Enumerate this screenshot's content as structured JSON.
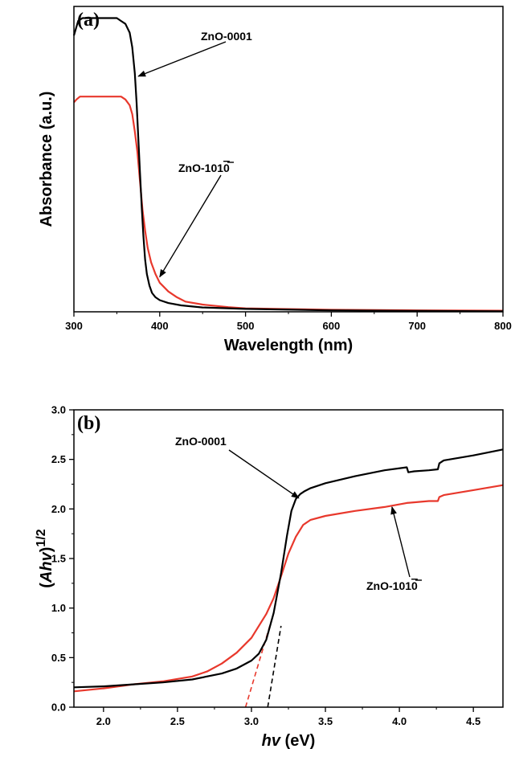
{
  "chart_data": [
    {
      "panel": "(a)",
      "type": "line",
      "xlabel": "Wavelength (nm)",
      "ylabel": "Absorbance (a.u.)",
      "xlim": [
        300,
        800
      ],
      "ylim": [
        0,
        1.05
      ],
      "xticks": [
        300,
        400,
        500,
        600,
        700,
        800
      ],
      "colors": {
        "ZnO-0001": "#000000",
        "ZnO-1010": "#e8382c"
      },
      "series": [
        {
          "name": "ZnO-0001",
          "color": "#000000",
          "x": [
            300,
            302,
            305,
            310,
            330,
            350,
            355,
            360,
            365,
            368,
            371,
            373,
            375,
            377,
            379,
            381,
            383,
            385,
            388,
            391,
            395,
            400,
            410,
            425,
            450,
            500,
            600,
            700,
            800
          ],
          "y": [
            0.95,
            0.97,
            1.0,
            1.01,
            1.01,
            1.01,
            1.0,
            0.99,
            0.96,
            0.91,
            0.82,
            0.72,
            0.6,
            0.48,
            0.36,
            0.26,
            0.18,
            0.13,
            0.09,
            0.065,
            0.05,
            0.04,
            0.03,
            0.022,
            0.015,
            0.01,
            0.005,
            0.003,
            0.002
          ]
        },
        {
          "name": "ZnO-1010",
          "color": "#e8382c",
          "x": [
            300,
            303,
            307,
            320,
            340,
            355,
            360,
            365,
            368,
            371,
            374,
            377,
            380,
            383,
            386,
            390,
            395,
            400,
            410,
            420,
            430,
            450,
            480,
            500,
            600,
            700,
            800
          ],
          "y": [
            0.72,
            0.73,
            0.74,
            0.74,
            0.74,
            0.74,
            0.73,
            0.71,
            0.68,
            0.62,
            0.55,
            0.45,
            0.35,
            0.28,
            0.22,
            0.17,
            0.13,
            0.1,
            0.07,
            0.05,
            0.035,
            0.025,
            0.016,
            0.012,
            0.007,
            0.005,
            0.004
          ]
        }
      ],
      "annotations": [
        {
          "text": "ZnO-0001",
          "target_series": "ZnO-0001",
          "arrow_to": [
            375,
            0.81
          ]
        },
        {
          "text": "ZnO-1010",
          "overline_chars": "10",
          "target_series": "ZnO-1010",
          "arrow_to": [
            400,
            0.12
          ]
        }
      ]
    },
    {
      "panel": "(b)",
      "type": "line",
      "xlabel": "hv  (eV)",
      "ylabel": "(Ahv)1/2",
      "xlim": [
        1.8,
        4.7
      ],
      "ylim": [
        0.0,
        3.0
      ],
      "xticks": [
        2.0,
        2.5,
        3.0,
        3.5,
        4.0,
        4.5
      ],
      "xtick_labels": [
        "2.0",
        "2.5",
        "3.0",
        "3.5",
        "4.0",
        "4.5"
      ],
      "yticks": [
        0.0,
        0.5,
        1.0,
        1.5,
        2.0,
        2.5,
        3.0
      ],
      "ytick_labels": [
        "0.0",
        "0.5",
        "1.0",
        "1.5",
        "2.0",
        "2.5",
        "3.0"
      ],
      "series": [
        {
          "name": "ZnO-0001",
          "color": "#000000",
          "x": [
            1.8,
            2.0,
            2.2,
            2.4,
            2.6,
            2.8,
            2.9,
            3.0,
            3.05,
            3.1,
            3.15,
            3.2,
            3.24,
            3.27,
            3.3,
            3.33,
            3.36,
            3.4,
            3.5,
            3.7,
            3.9,
            4.05,
            4.06,
            4.1,
            4.2,
            4.26,
            4.27,
            4.3,
            4.5,
            4.7
          ],
          "y": [
            0.2,
            0.21,
            0.23,
            0.25,
            0.28,
            0.34,
            0.39,
            0.47,
            0.54,
            0.68,
            0.95,
            1.35,
            1.73,
            1.98,
            2.1,
            2.15,
            2.18,
            2.21,
            2.26,
            2.33,
            2.39,
            2.42,
            2.37,
            2.38,
            2.39,
            2.4,
            2.46,
            2.49,
            2.54,
            2.6
          ]
        },
        {
          "name": "ZnO-1010",
          "color": "#e8382c",
          "x": [
            1.8,
            2.0,
            2.2,
            2.4,
            2.6,
            2.7,
            2.8,
            2.9,
            3.0,
            3.1,
            3.15,
            3.2,
            3.25,
            3.3,
            3.35,
            3.4,
            3.5,
            3.7,
            3.9,
            4.05,
            4.2,
            4.26,
            4.27,
            4.3,
            4.5,
            4.7
          ],
          "y": [
            0.16,
            0.19,
            0.23,
            0.26,
            0.31,
            0.36,
            0.44,
            0.55,
            0.7,
            0.94,
            1.1,
            1.32,
            1.55,
            1.72,
            1.84,
            1.89,
            1.93,
            1.98,
            2.02,
            2.06,
            2.08,
            2.08,
            2.12,
            2.14,
            2.19,
            2.24
          ]
        }
      ],
      "tangent_lines": [
        {
          "series": "ZnO-0001",
          "color": "#000000",
          "x": [
            3.11,
            3.2
          ],
          "y": [
            0.0,
            0.82
          ]
        },
        {
          "series": "ZnO-1010",
          "color": "#e8382c",
          "x": [
            2.96,
            3.15
          ],
          "y": [
            0.0,
            0.95
          ]
        }
      ],
      "annotations": [
        {
          "text": "ZnO-0001",
          "target_series": "ZnO-0001",
          "arrow_to": [
            3.32,
            2.11
          ]
        },
        {
          "text": "ZnO-1010",
          "overline_chars": "10",
          "target_series": "ZnO-1010",
          "arrow_to": [
            3.95,
            2.02
          ]
        }
      ]
    }
  ]
}
